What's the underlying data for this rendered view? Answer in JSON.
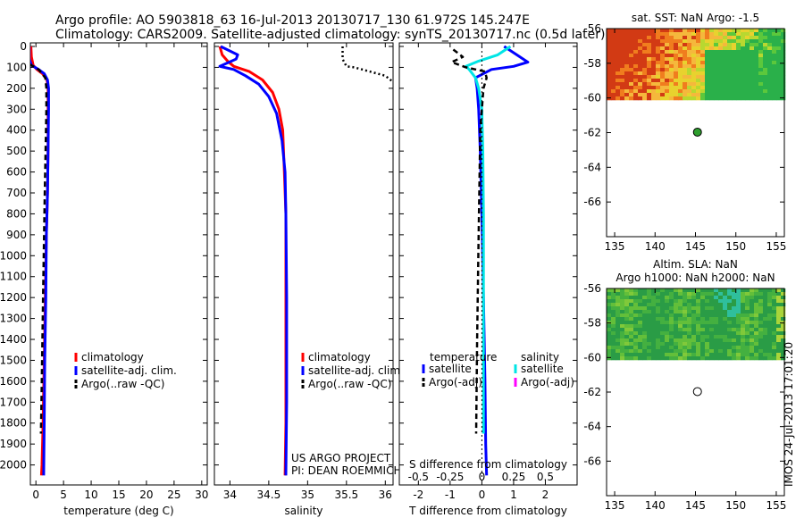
{
  "header": {
    "line1": "Argo profile: AO 5903818_63 16-Jul-2013 20130717_130 61.972S 145.247E",
    "line2": "Climatology: CARS2009. Satellite-adjusted climatology: synTS_20130717.nc (0.5d later)"
  },
  "side_stamp": "IMOS 24-Jul-2013 17:01:20",
  "colors": {
    "climatology": "#ff0000",
    "satellite": "#0000ff",
    "argo": "#000000",
    "sal_satellite": "#00e5e5",
    "sal_argo": "#ff00ff",
    "map_dot_sst": "#2e9e2e"
  },
  "chart_data": [
    {
      "id": "temperature",
      "type": "line",
      "xlabel": "temperature (deg C)",
      "ylabel": "",
      "xlim": [
        -1,
        31
      ],
      "ylim": [
        2070,
        0
      ],
      "xticks": [
        "0",
        "5",
        "10",
        "15",
        "20",
        "25",
        "30"
      ],
      "xtick_values": [
        0,
        5,
        10,
        15,
        20,
        25,
        30
      ],
      "yticks": [
        "0",
        "100",
        "200",
        "300",
        "400",
        "500",
        "600",
        "700",
        "800",
        "900",
        "1000",
        "1100",
        "1200",
        "1300",
        "1400",
        "1500",
        "1600",
        "1700",
        "1800",
        "1900",
        "2000"
      ],
      "ytick_values": [
        0,
        100,
        200,
        300,
        400,
        500,
        600,
        700,
        800,
        900,
        1000,
        1100,
        1200,
        1300,
        1400,
        1500,
        1600,
        1700,
        1800,
        1900,
        2000
      ],
      "legend": [
        "climatology",
        "satellite-adj. clim.",
        "Argo(..raw -QC)"
      ],
      "series": [
        {
          "name": "climatology",
          "color": "#ff0000",
          "style": "solid",
          "x": [
            -0.9,
            -0.8,
            -0.5,
            0.2,
            1.2,
            2.0,
            2.2,
            2.2,
            2.2,
            2.1,
            1.9,
            1.7,
            1.5,
            1.3,
            1.1,
            1.0
          ],
          "y": [
            0,
            50,
            90,
            110,
            130,
            160,
            200,
            300,
            500,
            700,
            900,
            1200,
            1500,
            1800,
            2000,
            2050
          ]
        },
        {
          "name": "satellite-adj. clim.",
          "color": "#0000ff",
          "style": "solid",
          "x": [
            -1.2,
            -1.2,
            -0.8,
            0.5,
            1.5,
            2.1,
            2.3,
            2.3,
            2.2,
            2.1,
            1.9,
            1.8,
            1.6,
            1.5,
            1.4
          ],
          "y": [
            0,
            60,
            90,
            110,
            130,
            160,
            200,
            300,
            500,
            700,
            900,
            1200,
            1500,
            1800,
            2050
          ]
        },
        {
          "name": "Argo(..raw -QC)",
          "color": "#000000",
          "style": "dashed",
          "x": [
            -1.5,
            -1.3,
            -1.5,
            0.5,
            1.7,
            1.9,
            1.9,
            1.6,
            1.3,
            1.0,
            0.9
          ],
          "y": [
            5,
            40,
            80,
            110,
            150,
            200,
            300,
            700,
            1200,
            1700,
            1850
          ]
        }
      ]
    },
    {
      "id": "salinity",
      "type": "line",
      "xlabel": "salinity",
      "ylabel": "",
      "xlim": [
        33.8,
        36.1
      ],
      "ylim": [
        2070,
        0
      ],
      "xticks": [
        "34",
        "34.5",
        "35",
        "35.5",
        "36"
      ],
      "xtick_values": [
        34,
        34.5,
        35,
        35.5,
        36
      ],
      "legend": [
        "climatology",
        "satellite-adj. clim.",
        "Argo(..raw -QC)"
      ],
      "annotation": [
        "US ARGO PROJECT",
        "PI: DEAN ROEMMICH"
      ],
      "series": [
        {
          "name": "climatology",
          "color": "#ff0000",
          "style": "solid",
          "x": [
            33.87,
            33.9,
            33.97,
            34.05,
            34.25,
            34.42,
            34.55,
            34.63,
            34.68,
            34.7,
            34.72,
            34.72,
            34.72,
            34.72,
            34.71
          ],
          "y": [
            0,
            40,
            70,
            95,
            120,
            160,
            220,
            300,
            400,
            600,
            800,
            1000,
            1400,
            1800,
            2050
          ]
        },
        {
          "name": "satellite-adj. clim.",
          "color": "#0000ff",
          "style": "solid",
          "x": [
            33.88,
            34.1,
            34.08,
            33.87,
            34.05,
            34.2,
            34.37,
            34.5,
            34.6,
            34.67,
            34.71,
            34.72,
            34.73,
            34.73,
            34.72
          ],
          "y": [
            0,
            40,
            60,
            95,
            110,
            140,
            180,
            240,
            320,
            450,
            600,
            800,
            1200,
            1700,
            2050
          ]
        },
        {
          "name": "Argo(..raw -QC)",
          "color": "#000000",
          "style": "dotted",
          "x": [
            35.45,
            35.45,
            35.5,
            35.6,
            35.8,
            36.0,
            36.1
          ],
          "y": [
            0,
            60,
            95,
            100,
            120,
            140,
            170
          ]
        }
      ]
    },
    {
      "id": "difference",
      "type": "line",
      "xlabel": "T difference from climatology",
      "xlabel_top": "S difference from climatology",
      "xlim": [
        -2.6,
        3.0
      ],
      "ylim": [
        2070,
        0
      ],
      "xticks": [
        "-2",
        "-1",
        "0",
        "1",
        "2"
      ],
      "xtick_values": [
        -2,
        -1,
        0,
        1,
        2
      ],
      "xticks_top": [
        "-0.5",
        "-0.25",
        "0",
        "0.25",
        "0.5"
      ],
      "xtick_top_values": [
        -0.5,
        -0.25,
        0,
        0.25,
        0.5
      ],
      "legend_headers": [
        "temperature",
        "salinity"
      ],
      "legend": [
        "satellite",
        "Argo(-adj)",
        "satellite",
        "Argo(-adj)"
      ],
      "series": [
        {
          "name": "satellite",
          "group": "temperature",
          "color": "#0000ff",
          "style": "solid",
          "x": [
            0.7,
            1.1,
            1.45,
            1.0,
            0.3,
            -0.2,
            -0.15,
            -0.1,
            -0.05,
            0.0,
            0.05,
            0.1,
            0.12,
            0.15
          ],
          "y": [
            0,
            40,
            75,
            95,
            110,
            150,
            200,
            300,
            500,
            800,
            1200,
            1600,
            1900,
            2050
          ]
        },
        {
          "name": "satellite",
          "group": "salinity",
          "color": "#00e5e5",
          "style": "solid",
          "x": [
            0.9,
            0.5,
            -0.1,
            -0.5,
            -0.4,
            -0.2,
            -0.1,
            0.0,
            0.03,
            0.05,
            0.05,
            0.05
          ],
          "y": [
            0,
            40,
            70,
            95,
            110,
            150,
            200,
            300,
            500,
            800,
            1300,
            1850
          ]
        },
        {
          "name": "Argo(-adj)",
          "group": "temperature",
          "color": "#000000",
          "style": "dashed",
          "x": [
            -0.9,
            -0.6,
            -0.95,
            -0.5,
            0.1,
            0.15,
            0.05,
            -0.05,
            -0.1,
            -0.15,
            -0.18
          ],
          "y": [
            15,
            50,
            75,
            100,
            120,
            150,
            200,
            400,
            900,
            1400,
            1850
          ]
        },
        {
          "name": "zero line",
          "group": "reference",
          "color": "#000000",
          "style": "dotted",
          "x": [
            0,
            0
          ],
          "y": [
            0,
            2070
          ]
        }
      ]
    },
    {
      "id": "sst_map",
      "type": "heatmap",
      "title": "sat. SST: NaN Argo: -1.5",
      "xlim": [
        134,
        156
      ],
      "ylim": [
        -68,
        -56
      ],
      "xticks": [
        "135",
        "140",
        "145",
        "150",
        "155"
      ],
      "xtick_values": [
        135,
        140,
        145,
        150,
        155
      ],
      "yticks": [
        "-56",
        "-58",
        "-60",
        "-62",
        "-64",
        "-66"
      ],
      "ytick_values": [
        -56,
        -58,
        -60,
        -62,
        -64,
        -66
      ],
      "data_extent_lat": [
        -60,
        -56
      ],
      "palette": [
        "#d23a14",
        "#f07d1e",
        "#f5b83c",
        "#e8d22e",
        "#b8d830",
        "#5cc83c",
        "#2ab04a"
      ],
      "argo_position": {
        "lon": 145.247,
        "lat": -61.972
      }
    },
    {
      "id": "sla_map",
      "type": "heatmap",
      "title": "Altim. SLA: NaN",
      "subtitle": "Argo h1000: NaN h2000: NaN",
      "xlim": [
        134,
        156
      ],
      "ylim": [
        -68,
        -56
      ],
      "xticks": [
        "135",
        "140",
        "145",
        "150",
        "155"
      ],
      "xtick_values": [
        135,
        140,
        145,
        150,
        155
      ],
      "yticks": [
        "-56",
        "-58",
        "-60",
        "-62",
        "-64",
        "-66"
      ],
      "ytick_values": [
        -56,
        -58,
        -60,
        -62,
        -64,
        -66
      ],
      "data_extent_lat": [
        -60,
        -56
      ],
      "palette": [
        "#2a9c46",
        "#44b040",
        "#63bf3a",
        "#80c93a",
        "#a9d53a",
        "#2fbf9c"
      ],
      "argo_position": {
        "lon": 145.247,
        "lat": -61.972
      }
    }
  ]
}
